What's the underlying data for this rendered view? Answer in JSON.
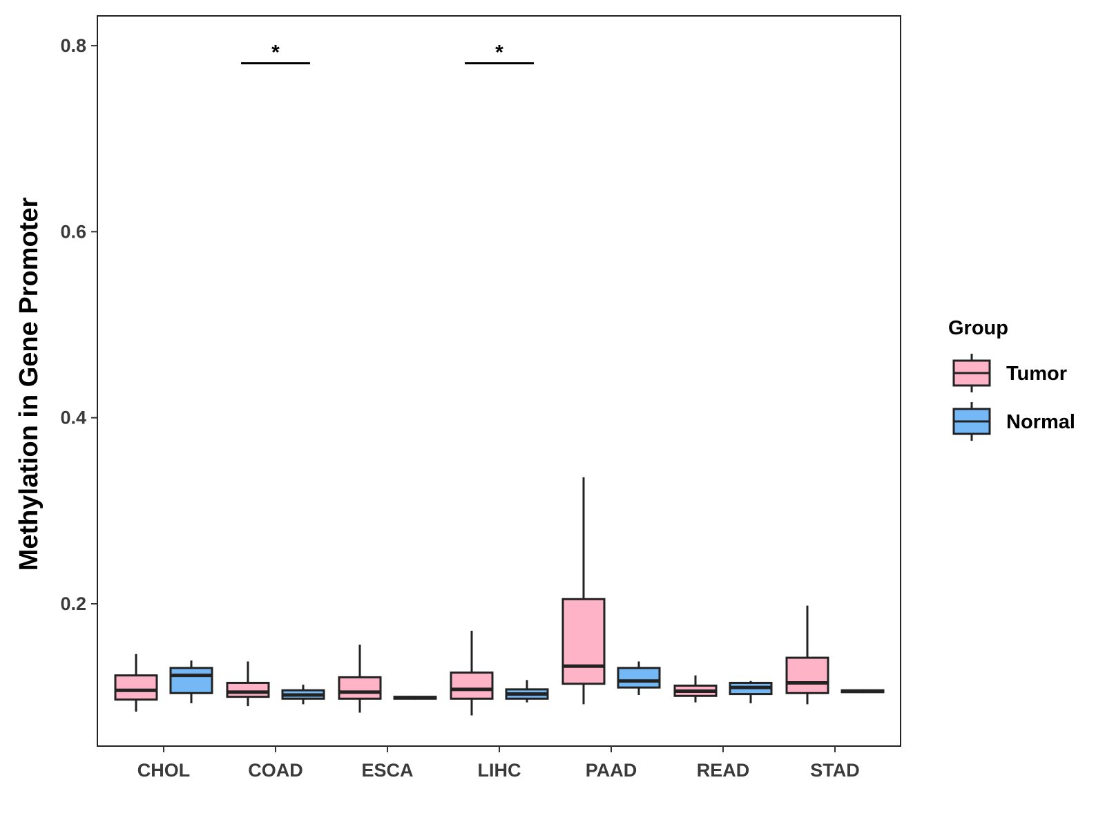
{
  "chart_data": {
    "type": "boxplot",
    "title": "",
    "xlabel": "",
    "ylabel": "Methylation in Gene Promoter",
    "ylim": [
      0.047,
      0.832
    ],
    "yticks": [
      0.2,
      0.4,
      0.6,
      0.8
    ],
    "ytick_labels": [
      "0.2",
      "0.4",
      "0.6",
      "0.8"
    ],
    "categories": [
      "CHOL",
      "COAD",
      "ESCA",
      "LIHC",
      "PAAD",
      "READ",
      "STAD"
    ],
    "legend": {
      "title": "Group",
      "placement": "right",
      "entries": [
        "Tumor",
        "Normal"
      ]
    },
    "colors": {
      "Tumor": "#FFB3C6",
      "Normal": "#74B9F5",
      "outline": "#222222"
    },
    "series": [
      {
        "name": "Tumor",
        "boxes": [
          {
            "category": "CHOL",
            "lower": 0.084,
            "q1": 0.097,
            "median": 0.107,
            "q3": 0.123,
            "upper": 0.146
          },
          {
            "category": "COAD",
            "lower": 0.09,
            "q1": 0.1,
            "median": 0.105,
            "q3": 0.115,
            "upper": 0.138
          },
          {
            "category": "ESCA",
            "lower": 0.083,
            "q1": 0.098,
            "median": 0.105,
            "q3": 0.121,
            "upper": 0.156
          },
          {
            "category": "LIHC",
            "lower": 0.08,
            "q1": 0.098,
            "median": 0.108,
            "q3": 0.126,
            "upper": 0.171
          },
          {
            "category": "PAAD",
            "lower": 0.092,
            "q1": 0.114,
            "median": 0.133,
            "q3": 0.205,
            "upper": 0.336
          },
          {
            "category": "READ",
            "lower": 0.094,
            "q1": 0.101,
            "median": 0.106,
            "q3": 0.112,
            "upper": 0.123
          },
          {
            "category": "STAD",
            "lower": 0.092,
            "q1": 0.104,
            "median": 0.115,
            "q3": 0.142,
            "upper": 0.198
          }
        ]
      },
      {
        "name": "Normal",
        "boxes": [
          {
            "category": "CHOL",
            "lower": 0.093,
            "q1": 0.104,
            "median": 0.123,
            "q3": 0.131,
            "upper": 0.139
          },
          {
            "category": "COAD",
            "lower": 0.092,
            "q1": 0.098,
            "median": 0.102,
            "q3": 0.107,
            "upper": 0.113
          },
          {
            "category": "ESCA",
            "lower": 0.097,
            "q1": 0.098,
            "median": 0.099,
            "q3": 0.1,
            "upper": 0.101
          },
          {
            "category": "LIHC",
            "lower": 0.094,
            "q1": 0.098,
            "median": 0.103,
            "q3": 0.108,
            "upper": 0.118
          },
          {
            "category": "PAAD",
            "lower": 0.102,
            "q1": 0.11,
            "median": 0.117,
            "q3": 0.131,
            "upper": 0.138
          },
          {
            "category": "READ",
            "lower": 0.093,
            "q1": 0.103,
            "median": 0.11,
            "q3": 0.115,
            "upper": 0.117
          },
          {
            "category": "STAD",
            "lower": 0.104,
            "q1": 0.105,
            "median": 0.106,
            "q3": 0.107,
            "upper": 0.108
          }
        ]
      }
    ],
    "significance": [
      {
        "category": "COAD",
        "y": 0.781,
        "label": "*"
      },
      {
        "category": "LIHC",
        "y": 0.781,
        "label": "*"
      }
    ]
  }
}
